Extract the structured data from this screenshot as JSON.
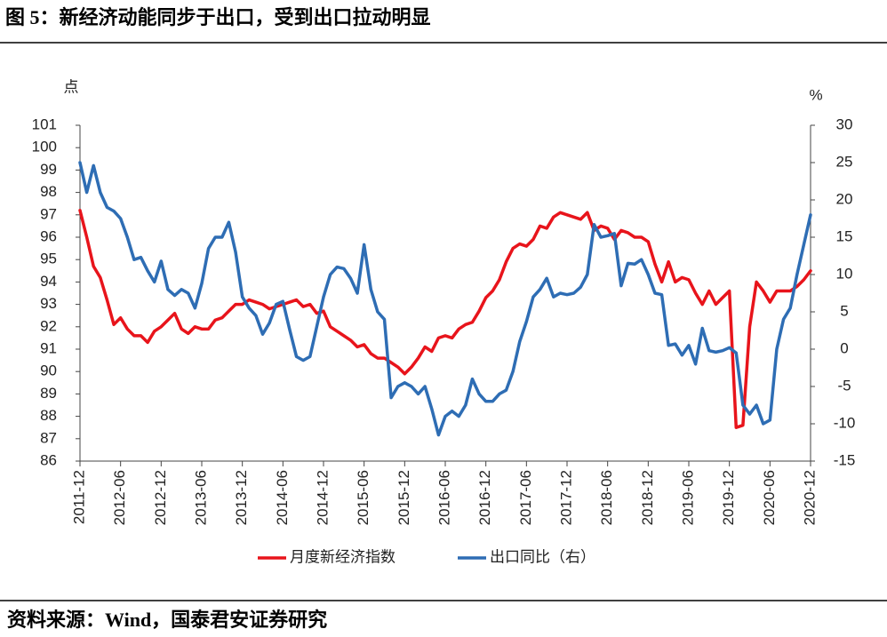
{
  "chart_data": {
    "type": "line",
    "title": "图 5：新经济动能同步于出口，受到出口拉动明显",
    "source": "资料来源：Wind，国泰君安证券研究",
    "ylabel": "点",
    "y2label": "%",
    "categories": [
      "2011-12",
      null,
      null,
      null,
      null,
      null,
      "2012-06",
      null,
      null,
      null,
      null,
      null,
      "2012-12",
      null,
      null,
      null,
      null,
      null,
      "2013-06",
      null,
      null,
      null,
      null,
      null,
      "2013-12",
      null,
      null,
      null,
      null,
      null,
      "2014-06",
      null,
      null,
      null,
      null,
      null,
      "2014-12",
      null,
      null,
      null,
      null,
      null,
      "2015-06",
      null,
      null,
      null,
      null,
      null,
      "2015-12",
      null,
      null,
      null,
      null,
      null,
      "2016-06",
      null,
      null,
      null,
      null,
      null,
      "2016-12",
      null,
      null,
      null,
      null,
      null,
      "2017-06",
      null,
      null,
      null,
      null,
      null,
      "2017-12",
      null,
      null,
      null,
      null,
      null,
      "2018-06",
      null,
      null,
      null,
      null,
      null,
      "2018-12",
      null,
      null,
      null,
      null,
      null,
      "2019-06",
      null,
      null,
      null,
      null,
      null,
      "2019-12",
      null,
      null,
      null,
      null,
      null,
      "2020-06",
      null,
      null,
      null,
      null,
      null,
      "2020-12"
    ],
    "series": [
      {
        "name": "月度新经济指数",
        "color": "#e8141b",
        "axis": "y",
        "values": [
          97.2,
          96.0,
          94.7,
          94.2,
          93.2,
          92.1,
          92.4,
          91.9,
          91.6,
          91.6,
          91.3,
          91.8,
          92.0,
          92.3,
          92.6,
          91.9,
          91.7,
          92.0,
          91.9,
          91.9,
          92.3,
          92.4,
          92.7,
          93.0,
          93.0,
          93.2,
          93.1,
          93.0,
          92.8,
          92.9,
          93.0,
          93.1,
          93.2,
          92.9,
          93.0,
          92.6,
          92.7,
          92.0,
          91.8,
          91.6,
          91.4,
          91.1,
          91.2,
          90.8,
          90.6,
          90.6,
          90.4,
          90.2,
          89.9,
          90.2,
          90.6,
          91.1,
          90.9,
          91.5,
          91.6,
          91.5,
          91.9,
          92.1,
          92.2,
          92.7,
          93.3,
          93.6,
          94.1,
          94.9,
          95.5,
          95.7,
          95.6,
          95.9,
          96.5,
          96.4,
          96.9,
          97.1,
          97.0,
          96.9,
          96.8,
          97.1,
          96.3,
          96.5,
          96.4,
          95.9,
          96.3,
          96.2,
          96.0,
          96.0,
          95.8,
          94.8,
          94.0,
          94.9,
          94.0,
          94.2,
          94.1,
          93.5,
          93.0,
          93.6,
          93.0,
          93.3,
          93.6,
          87.5,
          87.6,
          92.0,
          94.0,
          93.6,
          93.1,
          93.6,
          93.6,
          93.6,
          93.8,
          94.1,
          94.5
        ]
      },
      {
        "name": "出口同比（右）",
        "color": "#2e6db4",
        "axis": "y2",
        "values": [
          25,
          21,
          24.6,
          21,
          19,
          18.5,
          17.5,
          15,
          12,
          12.3,
          10.5,
          9,
          11.8,
          8,
          7.2,
          8,
          7.5,
          5.5,
          8.8,
          13.5,
          15,
          15,
          17,
          13,
          7,
          5.5,
          4.5,
          2,
          3.5,
          6,
          6.4,
          2.6,
          -1,
          -1.5,
          -1,
          3,
          7,
          10,
          11,
          10.8,
          9.5,
          7.5,
          14,
          8,
          5,
          4,
          -6.5,
          -5,
          -4.5,
          -5,
          -6,
          -5,
          -8,
          -11.5,
          -9,
          -8.3,
          -9,
          -7.5,
          -4,
          -6,
          -7,
          -7,
          -6,
          -5.5,
          -3,
          1,
          3.7,
          7,
          8,
          9.5,
          7,
          7.5,
          7.3,
          7.5,
          8.3,
          10,
          16.7,
          15,
          15.2,
          15.5,
          8.5,
          11.5,
          11.4,
          12,
          10,
          7.5,
          7.3,
          0.5,
          0.7,
          -0.8,
          0.5,
          -2,
          2.8,
          -0.2,
          -0.4,
          -0.2,
          0.2,
          -0.5,
          -7.5,
          -8.7,
          -7.5,
          -10,
          -9.5,
          0,
          4,
          5.5,
          10,
          14,
          18
        ]
      }
    ],
    "ylim": [
      86,
      101
    ],
    "yticks": [
      86,
      87,
      88,
      89,
      90,
      91,
      92,
      93,
      94,
      95,
      96,
      97,
      98,
      99,
      100,
      101
    ],
    "y2lim": [
      -15,
      30
    ],
    "y2ticks": [
      -15,
      -10,
      -5,
      0,
      5,
      10,
      15,
      20,
      25,
      30
    ],
    "grid": false
  }
}
